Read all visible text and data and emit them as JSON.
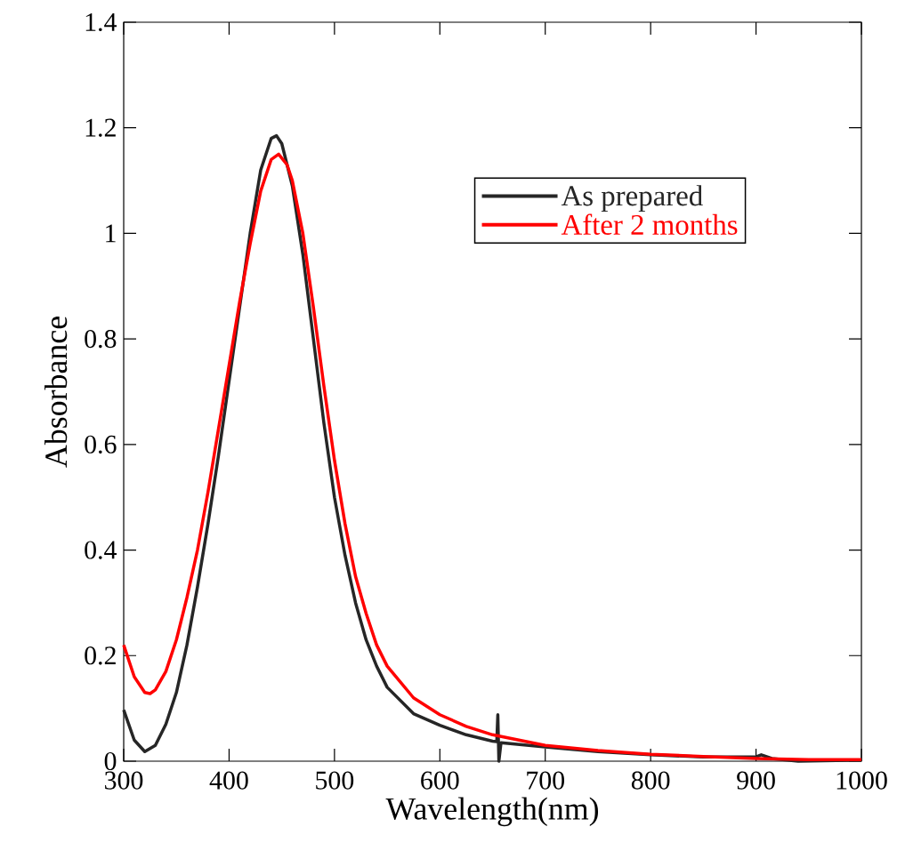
{
  "chart_data": {
    "type": "line",
    "xlabel": "Wavelength(nm)",
    "ylabel": "Absorbance",
    "xlim": [
      300,
      1000
    ],
    "xticks": [
      300,
      400,
      500,
      600,
      700,
      800,
      900,
      1000
    ],
    "ylim": [
      0,
      1.4
    ],
    "yticks": [
      0,
      0.2,
      0.4,
      0.6,
      0.8,
      1,
      1.2,
      1.4
    ],
    "legend": "top right",
    "grid": false,
    "marker": "none",
    "line_style": "solid",
    "series": [
      {
        "name": "As prepared",
        "color": "#262626",
        "x": [
          300,
          310,
          320,
          330,
          340,
          350,
          360,
          370,
          380,
          390,
          400,
          410,
          420,
          430,
          440,
          445,
          450,
          460,
          470,
          480,
          490,
          500,
          510,
          520,
          530,
          540,
          550,
          575,
          600,
          625,
          650,
          654,
          655,
          656,
          658,
          700,
          750,
          800,
          850,
          900,
          905,
          915,
          940,
          1000
        ],
        "values": [
          0.097,
          0.04,
          0.018,
          0.03,
          0.07,
          0.13,
          0.22,
          0.33,
          0.45,
          0.58,
          0.72,
          0.86,
          1.0,
          1.12,
          1.18,
          1.185,
          1.17,
          1.09,
          0.96,
          0.8,
          0.64,
          0.5,
          0.39,
          0.3,
          0.23,
          0.18,
          0.14,
          0.09,
          0.068,
          0.05,
          0.038,
          0.037,
          0.088,
          0.0,
          0.035,
          0.027,
          0.018,
          0.012,
          0.008,
          0.008,
          0.012,
          0.005,
          0.0,
          0.002
        ]
      },
      {
        "name": "After 2 months",
        "color": "#ff0000",
        "x": [
          300,
          310,
          320,
          325,
          330,
          340,
          350,
          360,
          370,
          380,
          390,
          400,
          410,
          420,
          430,
          440,
          447,
          455,
          460,
          470,
          480,
          490,
          500,
          510,
          520,
          530,
          540,
          550,
          575,
          600,
          625,
          650,
          700,
          750,
          800,
          850,
          900,
          950,
          1000
        ],
        "values": [
          0.22,
          0.16,
          0.13,
          0.128,
          0.135,
          0.17,
          0.23,
          0.31,
          0.4,
          0.51,
          0.63,
          0.75,
          0.87,
          0.98,
          1.08,
          1.14,
          1.15,
          1.13,
          1.1,
          1.0,
          0.86,
          0.71,
          0.57,
          0.45,
          0.35,
          0.28,
          0.22,
          0.18,
          0.12,
          0.088,
          0.066,
          0.05,
          0.03,
          0.02,
          0.013,
          0.009,
          0.005,
          0.003,
          0.003
        ]
      }
    ]
  }
}
